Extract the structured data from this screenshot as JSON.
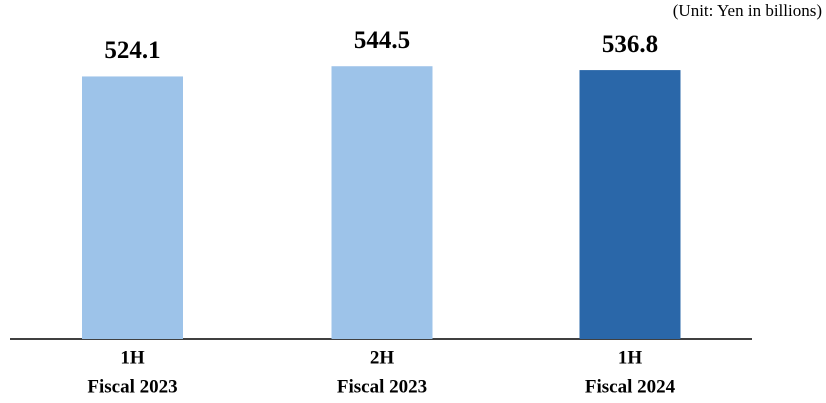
{
  "chart_data": {
    "type": "bar",
    "unit_note": "(Unit: Yen in billions)",
    "categories": [
      [
        "1H",
        "Fiscal 2023"
      ],
      [
        "2H",
        "Fiscal 2023"
      ],
      [
        "1H",
        "Fiscal 2024"
      ]
    ],
    "values": [
      524.1,
      544.5,
      536.8
    ],
    "colors": [
      "#9dc3e9",
      "#9dc3e9",
      "#2a67a9"
    ]
  }
}
